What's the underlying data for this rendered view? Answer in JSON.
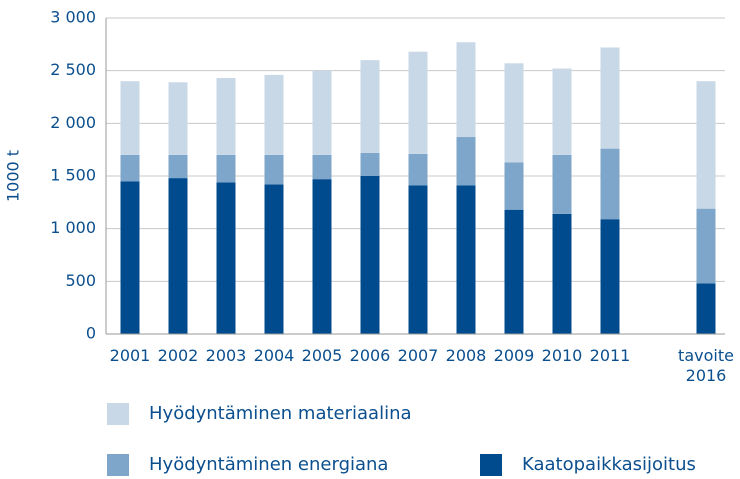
{
  "chart_data": {
    "type": "stacked_bar",
    "y_label": "1000 t",
    "categories": [
      "2001",
      "2002",
      "2003",
      "2004",
      "2005",
      "2006",
      "2007",
      "2008",
      "2009",
      "2010",
      "2011",
      null,
      "tavoite\n2016"
    ],
    "series": [
      {
        "name": "Kaatopaikkasijoitus",
        "color": "#004b8d",
        "values": [
          1450,
          1480,
          1440,
          1420,
          1470,
          1500,
          1410,
          1410,
          1180,
          1140,
          1090,
          null,
          480
        ]
      },
      {
        "name": "Hyödyntäminen energiana",
        "color": "#7ea6ca",
        "values": [
          250,
          220,
          260,
          280,
          230,
          220,
          300,
          460,
          450,
          560,
          670,
          null,
          710
        ]
      },
      {
        "name": "Hyödyntäminen materiaalina",
        "color": "#c8d8e7",
        "values": [
          700,
          690,
          730,
          760,
          800,
          880,
          970,
          900,
          940,
          820,
          960,
          null,
          1210
        ]
      }
    ],
    "ylim": [
      0,
      3000
    ],
    "yticks": [
      0,
      500,
      {
        "value": 1000,
        "label": "1 000"
      },
      {
        "value": 1500,
        "label": "1 500"
      },
      {
        "value": 2000,
        "label": "2 000"
      },
      {
        "value": 2500,
        "label": "2 500"
      },
      {
        "value": 3000,
        "label": "3 000"
      }
    ],
    "grid": true
  }
}
